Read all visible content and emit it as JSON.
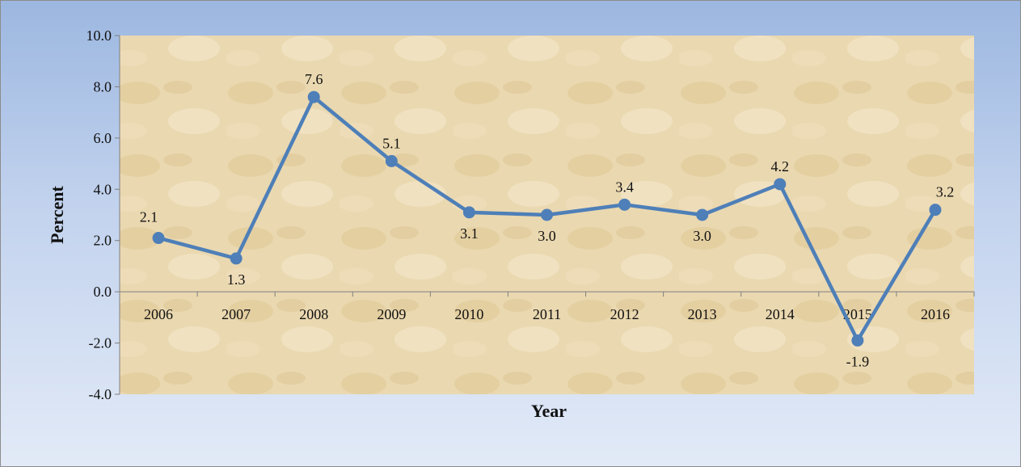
{
  "chart_data": {
    "type": "line",
    "title": "",
    "xlabel": "Year",
    "ylabel": "Percent",
    "categories": [
      "2006",
      "2007",
      "2008",
      "2009",
      "2010",
      "2011",
      "2012",
      "2013",
      "2014",
      "2015",
      "2016"
    ],
    "series": [
      {
        "values": [
          2.1,
          1.3,
          7.6,
          5.1,
          3.1,
          3.0,
          3.4,
          3.0,
          4.2,
          -1.9,
          3.2
        ],
        "labels": [
          "2.1",
          "1.3",
          "7.6",
          "5.1",
          "3.1",
          "3.0",
          "3.4",
          "3.0",
          "4.2",
          "-1.9",
          "3.2"
        ],
        "label_positions": [
          "above",
          "below",
          "above",
          "above",
          "below",
          "below",
          "above",
          "below",
          "above",
          "below",
          "above"
        ],
        "color": "#4e7fb8"
      }
    ],
    "ylim": [
      -4.0,
      10.0
    ],
    "yticks": [
      "-4.0",
      "-2.0",
      "0.0",
      "2.0",
      "4.0",
      "6.0",
      "8.0",
      "10.0"
    ],
    "grid": false,
    "legend": "none",
    "colors": {
      "plot_background": "#ead9b2",
      "frame_gradient_top": "#9cb7e0",
      "frame_gradient_bottom": "#e2eaf7",
      "axis": "#7f7f7f"
    }
  }
}
